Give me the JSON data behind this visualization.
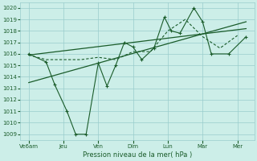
{
  "background_color": "#cceee8",
  "grid_color": "#99cccc",
  "line_color": "#1a5c2a",
  "xlabel": "Pression niveau de la mer( hPa )",
  "ylim": [
    1008.5,
    1020.5
  ],
  "yticks": [
    1009,
    1010,
    1011,
    1012,
    1013,
    1014,
    1015,
    1016,
    1017,
    1018,
    1019,
    1020
  ],
  "xtick_labels": [
    "Ve6am",
    "Jeu",
    "Ven",
    "Dim",
    "Lun",
    "Mar",
    "Mer"
  ],
  "xtick_positions": [
    0,
    2,
    4,
    6,
    8,
    10,
    12
  ],
  "xlim": [
    -0.5,
    13.0
  ],
  "zigzag_x": [
    0,
    1,
    1.5,
    2.2,
    2.7,
    3.3,
    4.0,
    4.5,
    5.0,
    5.5,
    6.0,
    6.5,
    7.2,
    7.8,
    8.2,
    8.7,
    9.5,
    10.0,
    10.5,
    11.5,
    12.5
  ],
  "zigzag_y": [
    1016.0,
    1015.3,
    1013.3,
    1011.0,
    1009.0,
    1009.0,
    1015.2,
    1013.2,
    1015.0,
    1017.0,
    1016.6,
    1015.5,
    1016.5,
    1019.2,
    1018.0,
    1017.8,
    1020.0,
    1018.8,
    1016.0,
    1016.0,
    1017.5
  ],
  "dashed_x": [
    0,
    1,
    2,
    3,
    4,
    5,
    6,
    7,
    8,
    9,
    10,
    11,
    12
  ],
  "dashed_y": [
    1015.9,
    1015.5,
    1015.5,
    1015.5,
    1015.7,
    1015.5,
    1016.2,
    1016.2,
    1018.0,
    1019.0,
    1017.5,
    1016.5,
    1017.6
  ],
  "trend1_x": [
    0,
    12.5
  ],
  "trend1_y": [
    1015.9,
    1018.2
  ],
  "trend2_x": [
    0,
    12.5
  ],
  "trend2_y": [
    1013.5,
    1018.8
  ]
}
